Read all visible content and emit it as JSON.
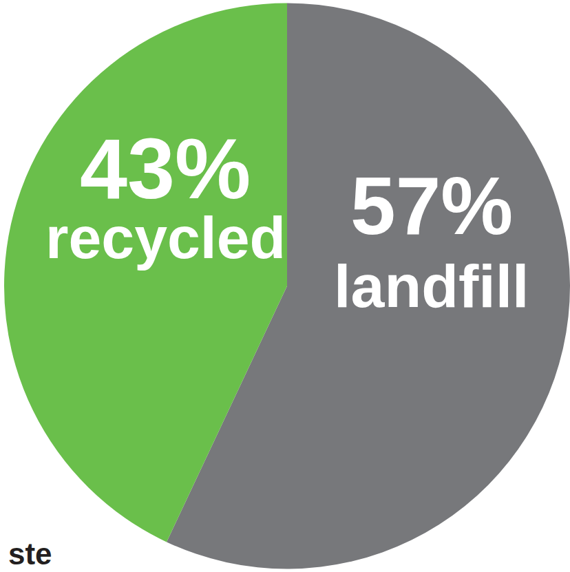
{
  "chart_data": {
    "type": "pie",
    "categories": [
      "recycled",
      "landfill"
    ],
    "values": [
      43,
      57
    ],
    "value_labels": [
      "43%",
      "57%"
    ],
    "colors": [
      "#6abf4b",
      "#77787b"
    ],
    "data_labels": true,
    "annotations": [
      "ste"
    ]
  }
}
